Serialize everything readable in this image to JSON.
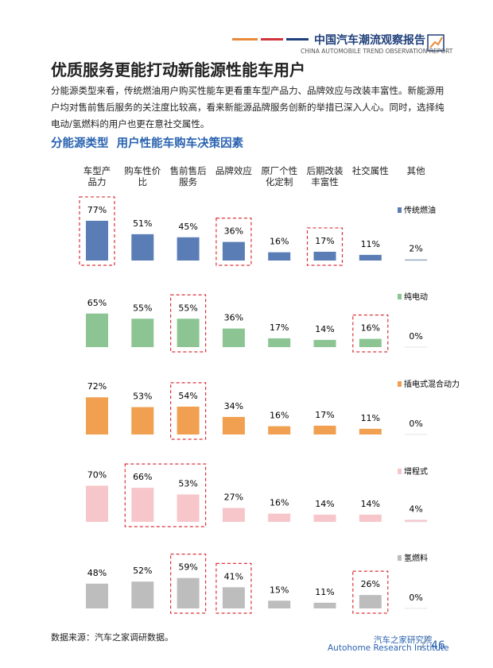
{
  "header": {
    "title": "中国汽车潮流观察报告",
    "subtitle": "CHINA AUTOMOBILE TREND OBSERVATION REPORT"
  },
  "page_title": "优质服务更能打动新能源性能车用户",
  "paragraph": "分能源类型来看，传统燃油用户购买性能车更看重车型产品力、品牌效应与改装丰富性。新能源用户均对售前售后服务的关注度比较高，看来新能源品牌服务创新的举措已深入人心。同时，选择纯电动/氢燃料的用户也更在意社交属性。",
  "chart_data": {
    "type": "bar",
    "title": "分能源类型  用户性能车购车决策因素",
    "categories": [
      "车型产\n品力",
      "购车性价\n比",
      "售前售后\n服务",
      "品牌效应",
      "原厂个性\n化定制",
      "后期改装\n丰富性",
      "社交属性",
      "其他"
    ],
    "series": [
      {
        "name": "传统燃油",
        "color": "#5b7db5",
        "values": [
          77,
          51,
          45,
          36,
          16,
          17,
          11,
          2
        ],
        "value_labels": [
          "77%",
          "51%",
          "45%",
          "36%",
          "16%",
          "17%",
          "11%",
          "2%"
        ],
        "highlight": [
          [
            0,
            0
          ],
          [
            3,
            3
          ],
          [
            5,
            5
          ]
        ]
      },
      {
        "name": "纯电动",
        "color": "#8cc593",
        "values": [
          65,
          55,
          55,
          36,
          17,
          14,
          16,
          0
        ],
        "value_labels": [
          "65%",
          "55%",
          "55%",
          "36%",
          "17%",
          "14%",
          "16%",
          "0%"
        ],
        "highlight": [
          [
            2,
            2
          ],
          [
            6,
            6
          ]
        ]
      },
      {
        "name": "插电式混合动力",
        "color": "#f0a050",
        "values": [
          72,
          53,
          54,
          34,
          16,
          17,
          11,
          0
        ],
        "value_labels": [
          "72%",
          "53%",
          "54%",
          "34%",
          "16%",
          "17%",
          "11%",
          "0%"
        ],
        "highlight": [
          [
            2,
            2
          ]
        ]
      },
      {
        "name": "增程式",
        "color": "#f7c6ca",
        "values": [
          70,
          66,
          53,
          27,
          16,
          14,
          14,
          4
        ],
        "value_labels": [
          "70%",
          "66%",
          "53%",
          "27%",
          "16%",
          "14%",
          "14%",
          "4%"
        ],
        "highlight": [
          [
            1,
            2
          ]
        ]
      },
      {
        "name": "氢燃料",
        "color": "#bdbdbd",
        "values": [
          48,
          52,
          59,
          41,
          15,
          11,
          26,
          0
        ],
        "value_labels": [
          "48%",
          "52%",
          "59%",
          "41%",
          "15%",
          "11%",
          "26%",
          "0%"
        ],
        "highlight": [
          [
            2,
            2
          ],
          [
            3,
            3
          ],
          [
            6,
            6
          ]
        ]
      }
    ]
  },
  "footer": {
    "source": "数据来源：汽车之家调研数据。",
    "org": "汽车之家研究院",
    "org_en": "Autohome Research Institute",
    "page": "46"
  }
}
